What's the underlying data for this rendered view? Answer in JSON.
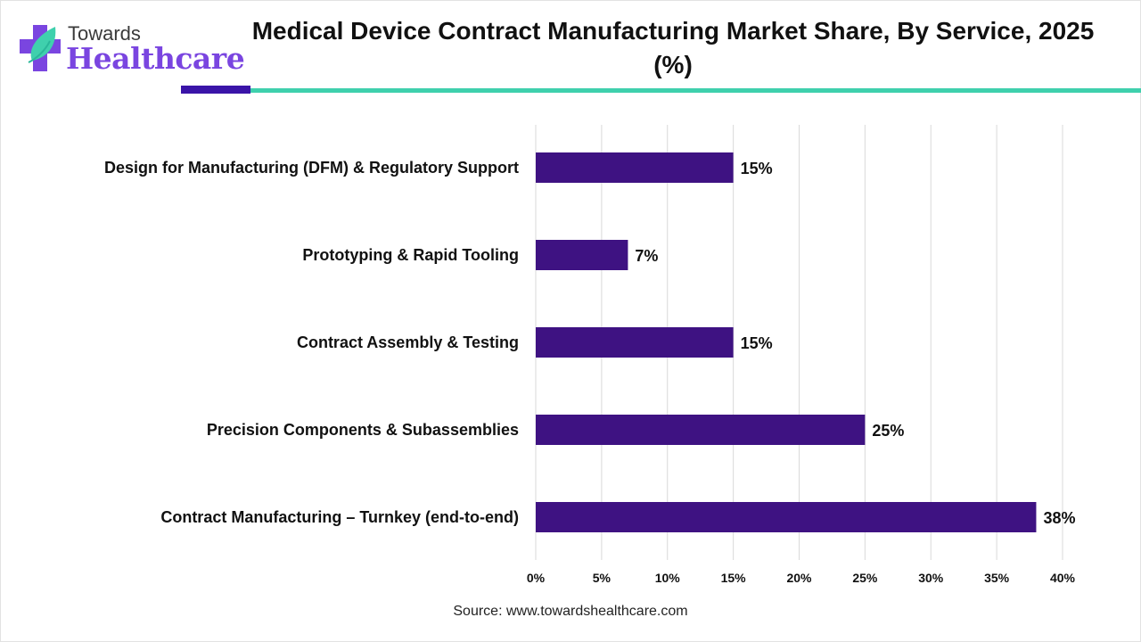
{
  "logo": {
    "line1": "Towards",
    "line2": "Healthcare"
  },
  "title": "Medical Device Contract Manufacturing Market Share, By Service, 2025 (%)",
  "source": "Source: www.towardshealthcare.com",
  "colors": {
    "bar": "#3e1282",
    "accent_dark": "#3a14a8",
    "accent_teal": "#3fd0ad",
    "logo_purple": "#7a45e0"
  },
  "chart_data": {
    "type": "bar",
    "orientation": "horizontal",
    "title": "Medical Device Contract Manufacturing Market Share, By Service, 2025 (%)",
    "categories": [
      "Design for Manufacturing (DFM) & Regulatory Support",
      "Prototyping & Rapid Tooling",
      "Contract Assembly & Testing",
      "Precision Components & Subassemblies",
      "Contract Manufacturing – Turnkey (end-to-end)"
    ],
    "values": [
      15,
      7,
      15,
      25,
      38
    ],
    "data_labels": [
      "15%",
      "7%",
      "15%",
      "25%",
      "38%"
    ],
    "xlabel": "",
    "ylabel": "",
    "xlim": [
      0,
      40
    ],
    "xticks": [
      0,
      5,
      10,
      15,
      20,
      25,
      30,
      35,
      40
    ],
    "xtick_labels": [
      "0%",
      "5%",
      "10%",
      "15%",
      "20%",
      "25%",
      "30%",
      "35%",
      "40%"
    ],
    "grid": "vertical",
    "legend": "none"
  }
}
